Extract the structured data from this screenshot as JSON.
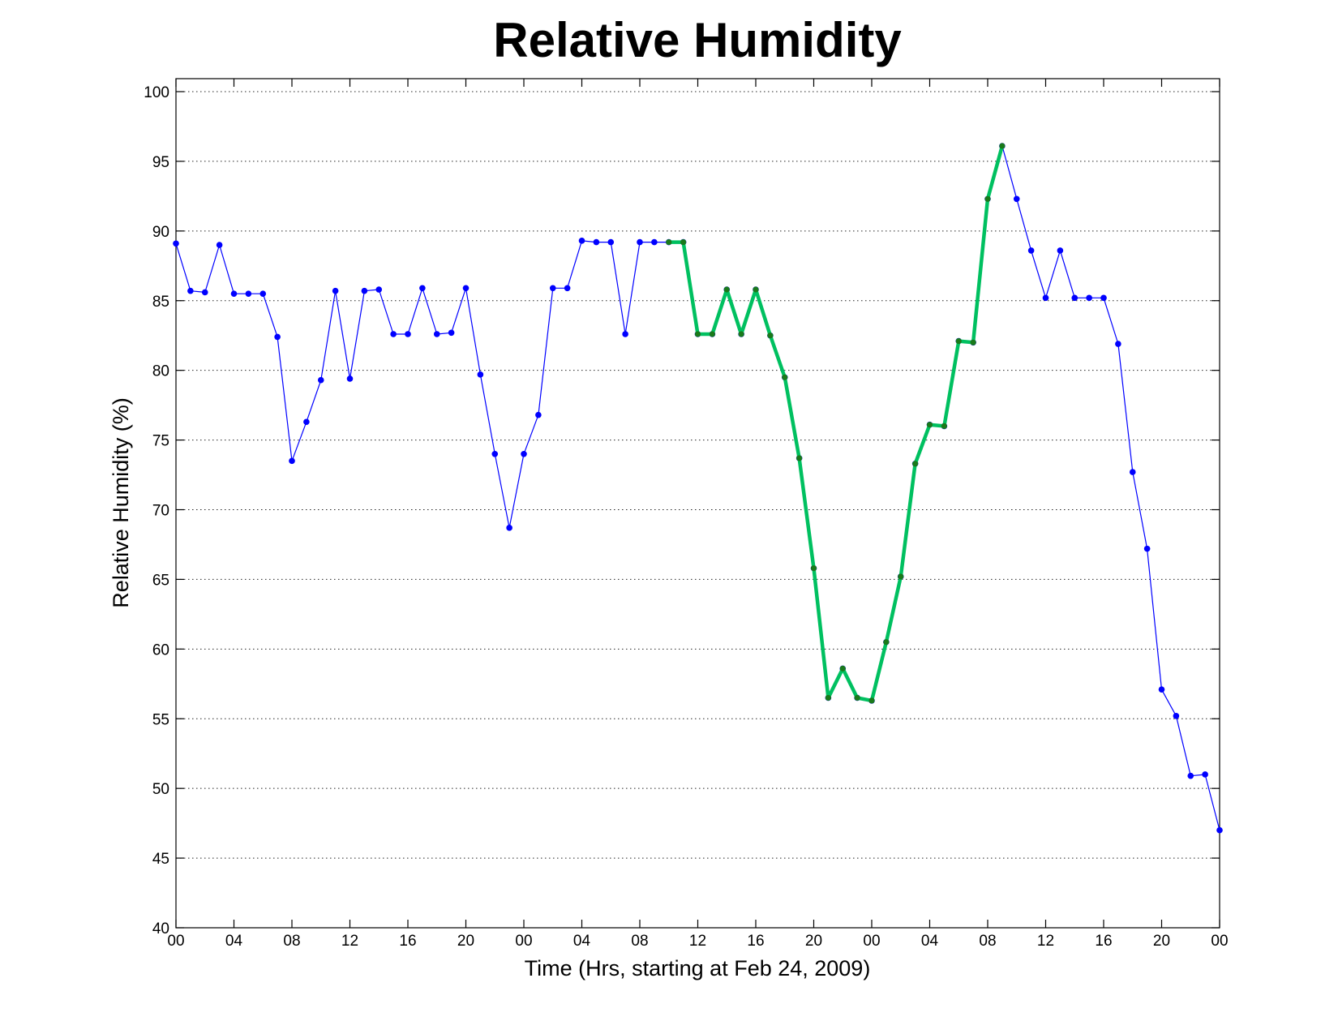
{
  "chart_data": {
    "type": "line",
    "title": "Relative Humidity",
    "xlabel": "Time (Hrs, starting at Feb 24, 2009)",
    "ylabel": "Relative Humidity (%)",
    "ylim": [
      40,
      100
    ],
    "yticks": [
      40,
      45,
      50,
      55,
      60,
      65,
      70,
      75,
      80,
      85,
      90,
      95,
      100
    ],
    "xlim": [
      0,
      72
    ],
    "xtick_positions": [
      0,
      4,
      8,
      12,
      16,
      20,
      24,
      28,
      32,
      36,
      40,
      44,
      48,
      52,
      56,
      60,
      64,
      68,
      72
    ],
    "xtick_labels": [
      "00",
      "04",
      "08",
      "12",
      "16",
      "20",
      "00",
      "04",
      "08",
      "12",
      "16",
      "20",
      "00",
      "04",
      "08",
      "12",
      "16",
      "20",
      "00"
    ],
    "grid": "y",
    "colors": {
      "main_line": "#0000ff",
      "main_marker": "#0000ff",
      "highlight_line": "#00c060",
      "highlight_marker": "#1a7a1a"
    },
    "series": [
      {
        "style": "thin",
        "x": [
          0,
          1,
          2,
          3,
          4,
          5,
          6,
          7,
          8,
          9,
          10,
          11,
          12,
          13,
          14,
          15,
          16,
          17,
          18,
          19,
          20,
          21,
          22,
          23,
          24,
          25,
          26,
          27,
          28,
          29,
          30,
          31,
          32,
          33,
          34,
          35,
          36,
          37,
          38,
          39,
          40,
          41,
          42,
          43,
          44,
          45,
          46,
          47,
          48,
          49,
          50,
          51,
          52,
          53,
          54,
          55,
          56,
          57,
          58,
          59,
          60,
          61,
          62,
          63,
          64,
          65,
          66,
          67,
          68,
          69,
          70,
          71,
          72
        ],
        "values": [
          89.1,
          85.7,
          85.6,
          89.0,
          85.5,
          85.5,
          85.5,
          82.4,
          73.5,
          76.3,
          79.3,
          85.7,
          79.4,
          85.7,
          85.8,
          82.6,
          82.6,
          85.9,
          82.6,
          82.7,
          85.9,
          79.7,
          74.0,
          68.7,
          74.0,
          76.8,
          85.9,
          85.9,
          89.3,
          89.2,
          89.2,
          82.6,
          89.2,
          89.2,
          89.2,
          89.2,
          82.6,
          82.6,
          85.8,
          82.6,
          85.8,
          82.5,
          79.5,
          73.7,
          65.8,
          56.5,
          58.6,
          56.5,
          56.3,
          60.5,
          65.2,
          73.3,
          76.1,
          76.0,
          82.1,
          82.0,
          92.3,
          96.1,
          92.3,
          88.6,
          85.2,
          88.6,
          85.2,
          85.2,
          85.2,
          81.9,
          72.7,
          67.2,
          57.1,
          55.2,
          50.9,
          51.0,
          47.0
        ]
      },
      {
        "style": "thick",
        "x": [
          34,
          35,
          36,
          37,
          38,
          39,
          40,
          41,
          42,
          43,
          44,
          45,
          46,
          47,
          48,
          49,
          50,
          51,
          52,
          53,
          54,
          55,
          56,
          57
        ],
        "values": [
          89.2,
          89.2,
          82.6,
          82.6,
          85.8,
          82.6,
          85.8,
          82.5,
          79.5,
          73.7,
          65.8,
          56.5,
          58.6,
          56.5,
          56.3,
          60.5,
          65.2,
          73.3,
          76.1,
          76.0,
          82.1,
          82.0,
          92.3,
          96.1
        ]
      }
    ]
  }
}
